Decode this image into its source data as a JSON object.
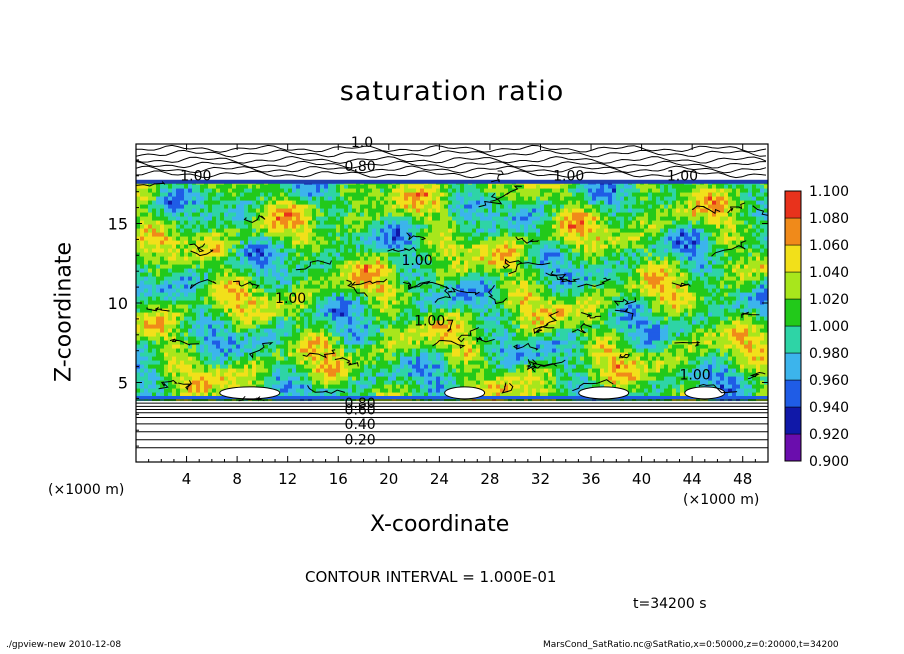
{
  "chart_data": {
    "type": "heatmap",
    "title": "saturation ratio",
    "xlabel": "X-coordinate",
    "ylabel": "Z-coordinate",
    "x_unit_label": "(×1000 m)",
    "xlim": [
      0,
      50
    ],
    "ylim": [
      0,
      20
    ],
    "x_ticks": [
      4,
      8,
      12,
      16,
      20,
      24,
      28,
      32,
      36,
      40,
      44,
      48
    ],
    "y_ticks": [
      5,
      10,
      15
    ],
    "colorbar": {
      "levels": [
        "0.900",
        "0.920",
        "0.940",
        "0.960",
        "0.980",
        "1.000",
        "1.020",
        "1.040",
        "1.060",
        "1.080",
        "1.100"
      ],
      "colors": [
        "#6a0dad",
        "#1018a8",
        "#1f5ce6",
        "#3cb4ec",
        "#2ed4a6",
        "#22c91a",
        "#a8e61c",
        "#f2e01a",
        "#f08a1a",
        "#e8321c",
        "#f5a0b4"
      ]
    },
    "contour_labels": [
      "1.00",
      "0.80",
      "0.60",
      "0.40",
      "0.20"
    ],
    "annotations": {
      "contour_interval": "CONTOUR INTERVAL = 1.000E-01",
      "time": "t=34200 s"
    },
    "lower_contours": [
      {
        "z": 1.4,
        "label": "0.20"
      },
      {
        "z": 2.4,
        "label": "0.40"
      },
      {
        "z": 3.3,
        "label": "0.60"
      },
      {
        "z": 3.7,
        "label": "0.80"
      }
    ]
  },
  "footer": {
    "left": "./gpview-new   2010-12-08",
    "right": "MarsCond_SatRatio.nc@SatRatio,x=0:50000,z=0:20000,t=34200"
  }
}
